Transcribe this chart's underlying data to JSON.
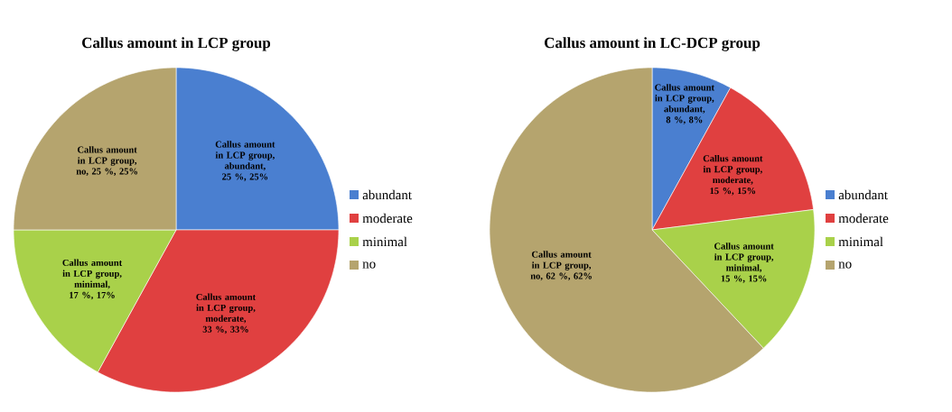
{
  "chart_data": [
    {
      "type": "pie",
      "title": "Callus amount in LCP group",
      "categories": [
        "abundant",
        "moderate",
        "minimal",
        "no"
      ],
      "values": [
        25,
        33,
        17,
        25
      ],
      "colors": [
        "#4a7fd0",
        "#e04040",
        "#a9d14a",
        "#b5a46e"
      ],
      "value_labels": [
        "Callus amount in LCP group, abundant, 25 %, 25%",
        "Callus amount in LCP group, moderate, 33 %, 33%",
        "Callus amount in LCP group, minimal, 17 %, 17%",
        "Callus amount in LCP group, no, 25 %, 25%"
      ],
      "legend": "right"
    },
    {
      "type": "pie",
      "title": "Callus amount in LC-DCP group",
      "categories": [
        "abundant",
        "moderate",
        "minimal",
        "no"
      ],
      "values": [
        8,
        15,
        15,
        62
      ],
      "colors": [
        "#4a7fd0",
        "#e04040",
        "#a9d14a",
        "#b5a46e"
      ],
      "value_labels": [
        "Callus amount in LCP group, abundant, 8 %, 8%",
        "Callus amount in LCP group, moderate, 15 %, 15%",
        "Callus amount in LCP group, minimal, 15 %, 15%",
        "Callus amount in LCP group, no, 62 %, 62%"
      ],
      "legend": "right"
    }
  ]
}
